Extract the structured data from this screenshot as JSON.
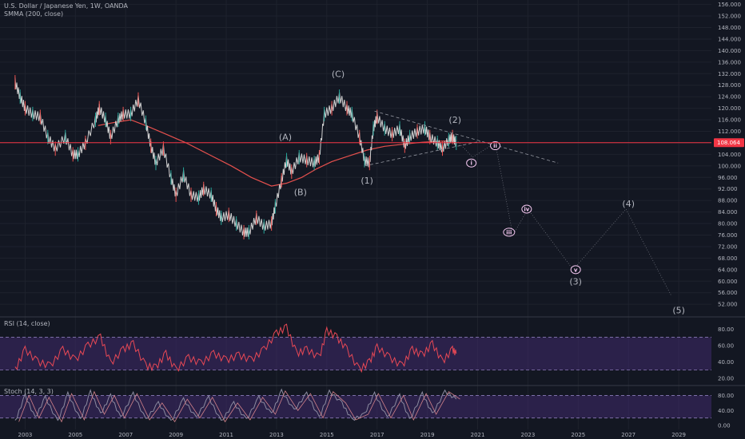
{
  "title": "U.S. Dollar / Japanese Yen, 1W, OANDA",
  "smma_label": "SMMA (200, close)",
  "rsi_label": "RSI (14, close)",
  "stoch_label": "Stoch (14, 3, 3)",
  "current_price": "108.064",
  "colors": {
    "bg": "#131722",
    "price": "#d0d0d0",
    "price_up": "#26a69a",
    "price_dn": "#ef5350",
    "smma": "#e5504d",
    "rsi": "#e84855",
    "stoch": "#8b8ba0",
    "band": "#3f2a6b",
    "current": "#f23645",
    "wave_circle": "#f3c6ef"
  },
  "chart_data": [
    {
      "type": "line",
      "name": "price",
      "title": "U.S. Dollar / Japanese Yen, 1W, OANDA",
      "x_ticks": [
        "2003",
        "2005",
        "2007",
        "2009",
        "2011",
        "2013",
        "2015",
        "2017",
        "2019",
        "2021",
        "2023",
        "2025",
        "2027",
        "2029"
      ],
      "y_ticks": [
        52,
        56,
        60,
        64,
        68,
        72,
        76,
        80,
        84,
        88,
        92,
        96,
        100,
        104,
        108,
        112,
        116,
        120,
        124,
        128,
        132,
        136,
        140,
        144,
        148,
        152,
        156
      ],
      "y_tick_labels": [
        "52.000",
        "56.000",
        "60.000",
        "64.000",
        "68.000",
        "72.000",
        "76.000",
        "80.000",
        "84.000",
        "88.000",
        "92.000",
        "96.000",
        "100.000",
        "104.000",
        "108.000",
        "112.000",
        "116.000",
        "120.000",
        "124.000",
        "128.000",
        "132.000",
        "136.000",
        "140.000",
        "144.000",
        "148.000",
        "152.000",
        "156.000"
      ],
      "ylim": [
        49,
        157
      ],
      "xlim": [
        2002.0,
        2030.3
      ],
      "series": [
        {
          "values": [
            [
              2002.6,
              129
            ],
            [
              2002.8,
              124
            ],
            [
              2003.0,
              120
            ],
            [
              2003.3,
              118
            ],
            [
              2003.6,
              117
            ],
            [
              2003.9,
              110
            ],
            [
              2004.2,
              106
            ],
            [
              2004.6,
              110
            ],
            [
              2004.9,
              104
            ],
            [
              2005.1,
              104
            ],
            [
              2005.4,
              108
            ],
            [
              2005.8,
              116
            ],
            [
              2005.95,
              120
            ],
            [
              2006.2,
              116
            ],
            [
              2006.4,
              110
            ],
            [
              2006.7,
              116
            ],
            [
              2006.9,
              118
            ],
            [
              2007.2,
              118
            ],
            [
              2007.5,
              123
            ],
            [
              2007.8,
              115
            ],
            [
              2008.0,
              107
            ],
            [
              2008.2,
              101
            ],
            [
              2008.5,
              106
            ],
            [
              2008.8,
              96
            ],
            [
              2009.0,
              90
            ],
            [
              2009.3,
              97
            ],
            [
              2009.6,
              90
            ],
            [
              2009.9,
              89
            ],
            [
              2010.1,
              92
            ],
            [
              2010.4,
              90
            ],
            [
              2010.6,
              85
            ],
            [
              2010.8,
              82
            ],
            [
              2011.1,
              83
            ],
            [
              2011.4,
              80
            ],
            [
              2011.7,
              77
            ],
            [
              2011.9,
              77
            ],
            [
              2012.2,
              82
            ],
            [
              2012.5,
              79
            ],
            [
              2012.8,
              80
            ],
            [
              2012.95,
              86
            ],
            [
              2013.2,
              95
            ],
            [
              2013.4,
              102
            ],
            [
              2013.6,
              98
            ],
            [
              2013.9,
              103
            ],
            [
              2014.2,
              102
            ],
            [
              2014.5,
              101
            ],
            [
              2014.7,
              103
            ],
            [
              2014.9,
              118
            ],
            [
              2015.2,
              120
            ],
            [
              2015.5,
              124
            ],
            [
              2015.8,
              120
            ],
            [
              2016.0,
              118
            ],
            [
              2016.3,
              110
            ],
            [
              2016.5,
              102
            ],
            [
              2016.7,
              101
            ],
            [
              2016.85,
              113
            ],
            [
              2017.0,
              117
            ],
            [
              2017.3,
              113
            ],
            [
              2017.6,
              111
            ],
            [
              2017.9,
              113
            ],
            [
              2018.1,
              107
            ],
            [
              2018.3,
              110
            ],
            [
              2018.6,
              112
            ],
            [
              2018.9,
              113
            ],
            [
              2019.1,
              110
            ],
            [
              2019.4,
              108
            ],
            [
              2019.6,
              106
            ],
            [
              2019.85,
              109
            ],
            [
              2020.0,
              110
            ],
            [
              2020.15,
              108
            ]
          ]
        },
        {
          "name": "SMMA (200, close)",
          "values": [
            [
              2005.9,
              114
            ],
            [
              2006.5,
              115
            ],
            [
              2007.2,
              116
            ],
            [
              2007.8,
              114
            ],
            [
              2008.6,
              111
            ],
            [
              2009.4,
              108
            ],
            [
              2010.3,
              104
            ],
            [
              2011.2,
              100
            ],
            [
              2012.0,
              96
            ],
            [
              2012.8,
              93
            ],
            [
              2013.4,
              94
            ],
            [
              2014.0,
              96
            ],
            [
              2014.6,
              99
            ],
            [
              2015.2,
              101.5
            ],
            [
              2015.9,
              103.5
            ],
            [
              2016.6,
              105.5
            ],
            [
              2017.3,
              106.8
            ],
            [
              2018.0,
              107.5
            ],
            [
              2018.8,
              108.2
            ],
            [
              2019.6,
              108.6
            ],
            [
              2020.15,
              108.8
            ]
          ]
        }
      ],
      "projection": {
        "dotted_path": [
          [
            2020.15,
            109
          ],
          [
            2020.8,
            103
          ],
          [
            2021.7,
            108
          ],
          [
            2022.4,
            76
          ],
          [
            2023.0,
            85
          ],
          [
            2024.8,
            64
          ],
          [
            2026.9,
            85
          ],
          [
            2028.7,
            55
          ]
        ],
        "triangle_upper": [
          [
            2016.9,
            119
          ],
          [
            2024.2,
            101
          ]
        ],
        "triangle_lower": [
          [
            2016.5,
            100
          ],
          [
            2021.1,
            108.5
          ]
        ]
      },
      "annotations": [
        {
          "text": "(A)",
          "x": 2013.35,
          "y": 110
        },
        {
          "text": "(B)",
          "x": 2013.95,
          "y": 91
        },
        {
          "text": "(C)",
          "x": 2015.45,
          "y": 132
        },
        {
          "text": "(1)",
          "x": 2016.6,
          "y": 95
        },
        {
          "text": "(2)",
          "x": 2020.1,
          "y": 116
        },
        {
          "text": "i",
          "x": 2020.75,
          "y": 101,
          "circle": true
        },
        {
          "text": "ii",
          "x": 2021.7,
          "y": 107,
          "circle": true
        },
        {
          "text": "iii",
          "x": 2022.25,
          "y": 77,
          "circle": true
        },
        {
          "text": "iv",
          "x": 2022.95,
          "y": 85,
          "circle": true
        },
        {
          "text": "v",
          "x": 2024.9,
          "y": 64,
          "circle": true
        },
        {
          "text": "(3)",
          "x": 2024.9,
          "y": 60
        },
        {
          "text": "(4)",
          "x": 2027.0,
          "y": 87
        },
        {
          "text": "(5)",
          "x": 2029.0,
          "y": 50
        }
      ]
    },
    {
      "type": "line",
      "name": "rsi",
      "title": "RSI (14, close)",
      "y_ticks": [
        20,
        40,
        60,
        80
      ],
      "y_tick_labels": [
        "20.00",
        "40.00",
        "60.00",
        "80.00"
      ],
      "ylim": [
        14,
        92
      ],
      "band": [
        30,
        70
      ],
      "series": [
        {
          "values": [
            [
              2002.6,
              30
            ],
            [
              2003.0,
              55
            ],
            [
              2003.5,
              40
            ],
            [
              2004.0,
              35
            ],
            [
              2004.5,
              55
            ],
            [
              2005.0,
              42
            ],
            [
              2005.5,
              60
            ],
            [
              2006.0,
              70
            ],
            [
              2006.4,
              38
            ],
            [
              2006.9,
              55
            ],
            [
              2007.3,
              62
            ],
            [
              2007.8,
              35
            ],
            [
              2008.2,
              33
            ],
            [
              2008.6,
              50
            ],
            [
              2009.0,
              30
            ],
            [
              2009.5,
              45
            ],
            [
              2010.0,
              38
            ],
            [
              2010.5,
              50
            ],
            [
              2011.0,
              42
            ],
            [
              2011.5,
              48
            ],
            [
              2012.0,
              42
            ],
            [
              2012.5,
              55
            ],
            [
              2013.0,
              75
            ],
            [
              2013.4,
              82
            ],
            [
              2013.8,
              50
            ],
            [
              2014.2,
              55
            ],
            [
              2014.7,
              45
            ],
            [
              2015.0,
              78
            ],
            [
              2015.4,
              70
            ],
            [
              2015.8,
              55
            ],
            [
              2016.3,
              30
            ],
            [
              2016.7,
              40
            ],
            [
              2017.0,
              58
            ],
            [
              2017.5,
              45
            ],
            [
              2018.0,
              35
            ],
            [
              2018.4,
              55
            ],
            [
              2018.8,
              48
            ],
            [
              2019.2,
              62
            ],
            [
              2019.6,
              40
            ],
            [
              2020.0,
              55
            ],
            [
              2020.15,
              50
            ]
          ]
        }
      ]
    },
    {
      "type": "line",
      "name": "stoch",
      "title": "Stoch (14, 3, 3)",
      "y_ticks": [
        0,
        40,
        80
      ],
      "y_tick_labels": [
        "0.00",
        "40.00",
        "80.00"
      ],
      "ylim": [
        -4,
        100
      ],
      "band": [
        20,
        80
      ],
      "series": [
        {
          "values": [
            [
              2002.6,
              10
            ],
            [
              2003.0,
              80
            ],
            [
              2003.4,
              20
            ],
            [
              2003.8,
              75
            ],
            [
              2004.3,
              10
            ],
            [
              2004.7,
              85
            ],
            [
              2005.2,
              15
            ],
            [
              2005.6,
              90
            ],
            [
              2006.0,
              30
            ],
            [
              2006.4,
              80
            ],
            [
              2006.8,
              20
            ],
            [
              2007.3,
              85
            ],
            [
              2007.8,
              15
            ],
            [
              2008.3,
              60
            ],
            [
              2008.8,
              10
            ],
            [
              2009.3,
              70
            ],
            [
              2009.8,
              20
            ],
            [
              2010.3,
              75
            ],
            [
              2010.8,
              10
            ],
            [
              2011.3,
              60
            ],
            [
              2011.8,
              15
            ],
            [
              2012.3,
              75
            ],
            [
              2012.8,
              30
            ],
            [
              2013.2,
              92
            ],
            [
              2013.7,
              40
            ],
            [
              2014.2,
              85
            ],
            [
              2014.7,
              20
            ],
            [
              2015.1,
              90
            ],
            [
              2015.6,
              60
            ],
            [
              2016.0,
              15
            ],
            [
              2016.5,
              30
            ],
            [
              2016.9,
              85
            ],
            [
              2017.4,
              20
            ],
            [
              2017.9,
              80
            ],
            [
              2018.3,
              15
            ],
            [
              2018.8,
              85
            ],
            [
              2019.2,
              30
            ],
            [
              2019.7,
              90
            ],
            [
              2020.15,
              70
            ]
          ]
        }
      ]
    }
  ]
}
